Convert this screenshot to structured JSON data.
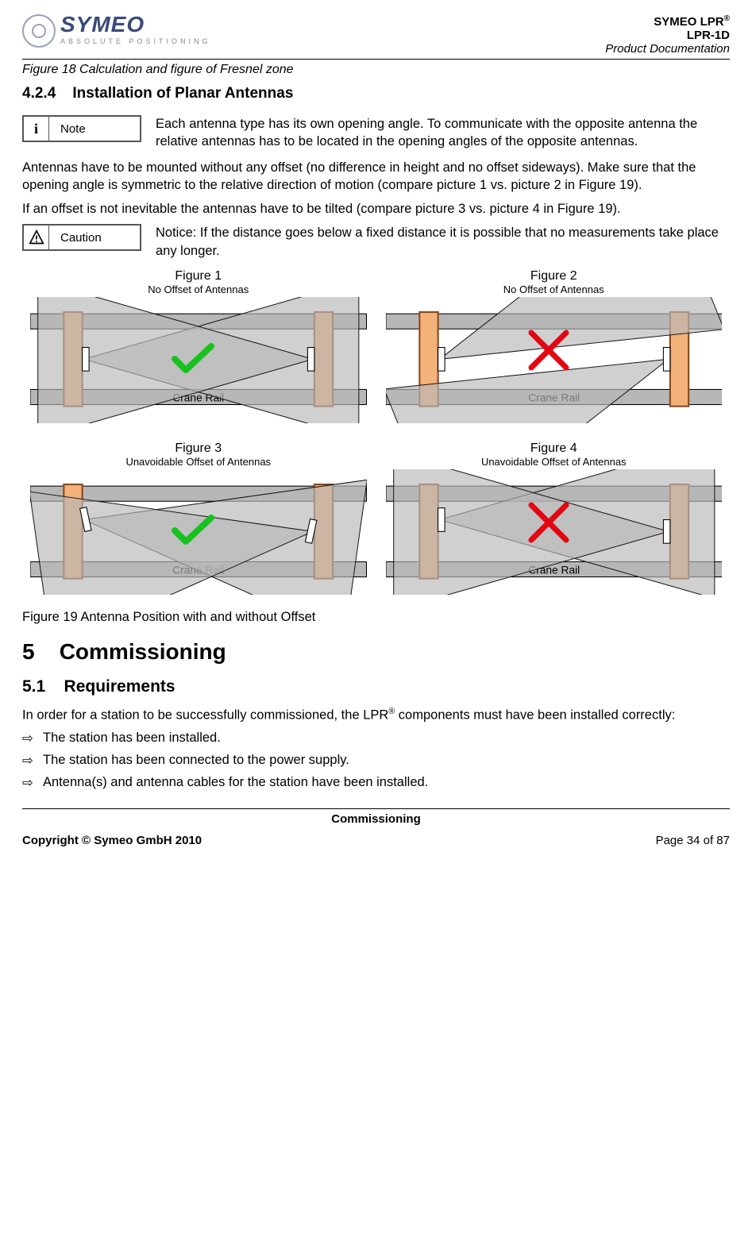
{
  "header": {
    "logo_name": "SYMEO",
    "logo_tagline": "ABSOLUTE POSITIONING",
    "right_line1_a": "SYMEO LPR",
    "right_line1_sup": "®",
    "right_line2": "LPR-1D",
    "right_line3": "Product Documentation"
  },
  "fig18_caption": "Figure 18 Calculation and figure of Fresnel zone",
  "section_424_num": "4.2.4",
  "section_424_title": "Installation of Planar Antennas",
  "note": {
    "icon_glyph": "i",
    "label": "Note",
    "text": "Each antenna type has its own opening angle. To communicate with the opposite antenna the relative antennas has to be located in the opening angles of the opposite antennas."
  },
  "para1": "Antennas have to be mounted without any offset (no difference in height and no offset sideways). Make sure that the opening angle is symmetric to the relative direction of motion (compare picture 1 vs. picture 2 in Figure 19).",
  "para2": "If an offset is not inevitable the antennas have to be tilted (compare picture 3 vs. picture 4 in Figure 19).",
  "caution": {
    "label": "Caution",
    "text": "Notice: If the distance goes below a fixed distance it is possible that no measurements take place any longer."
  },
  "figure19": {
    "crane_rail_label": "Crane Rail",
    "colors": {
      "rail_fill": "#b7b7b7",
      "crane_fill": "#f3b27a",
      "crane_stroke": "#8a4a1e",
      "beam_fill": "#9a9a9a",
      "beam_fill_light": "#e9e9e9",
      "beam_stroke": "#000000",
      "check_color": "#17c21f",
      "cross_color": "#e30613"
    },
    "panels": [
      {
        "title": "Figure 1",
        "subtitle": "No Offset of Antennas",
        "status": "ok"
      },
      {
        "title": "Figure 2",
        "subtitle": "No Offset of Antennas",
        "status": "bad"
      },
      {
        "title": "Figure 3",
        "subtitle": "Unavoidable Offset of Antennas",
        "status": "ok"
      },
      {
        "title": "Figure 4",
        "subtitle": "Unavoidable Offset of Antennas",
        "status": "bad"
      }
    ]
  },
  "fig19_caption": "Figure 19 Antenna Position with and without Offset",
  "h5_num": "5",
  "h5_title": "Commissioning",
  "h51_num": "5.1",
  "h51_title": "Requirements",
  "req_intro_a": "In order for a station to be successfully commissioned, the LPR",
  "req_intro_sup": "®",
  "req_intro_b": " components must have been installed correctly:",
  "bullet_sym": "⇨",
  "bullets": [
    "The station has been installed.",
    "The station has been connected to the power supply.",
    "Antenna(s) and antenna cables for the station have been installed."
  ],
  "footer": {
    "center": "Commissioning",
    "left": "Copyright © Symeo GmbH 2010",
    "right": "Page 34 of 87"
  }
}
